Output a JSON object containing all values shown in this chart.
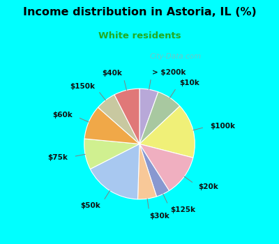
{
  "title": "Income distribution in Astoria, IL (%)",
  "subtitle": "White residents",
  "title_color": "#000000",
  "subtitle_color": "#22aa22",
  "background_top_color": "#00ffff",
  "chart_bg_color": "#dff0e8",
  "watermark": "City-Data.com",
  "labels": [
    "> $200k",
    "$10k",
    "$100k",
    "$20k",
    "$125k",
    "$30k",
    "$50k",
    "$75k",
    "$60k",
    "$150k",
    "$40k"
  ],
  "values": [
    5.5,
    7.5,
    16.0,
    12.0,
    4.0,
    5.5,
    17.0,
    9.0,
    10.0,
    6.0,
    7.5
  ],
  "colors": [
    "#b8a8d8",
    "#a8c8a0",
    "#f0f078",
    "#f0afc0",
    "#8898d0",
    "#f8c898",
    "#a8c8f0",
    "#d0f090",
    "#f0a848",
    "#c8c8a0",
    "#e07878"
  ],
  "startangle": 90
}
